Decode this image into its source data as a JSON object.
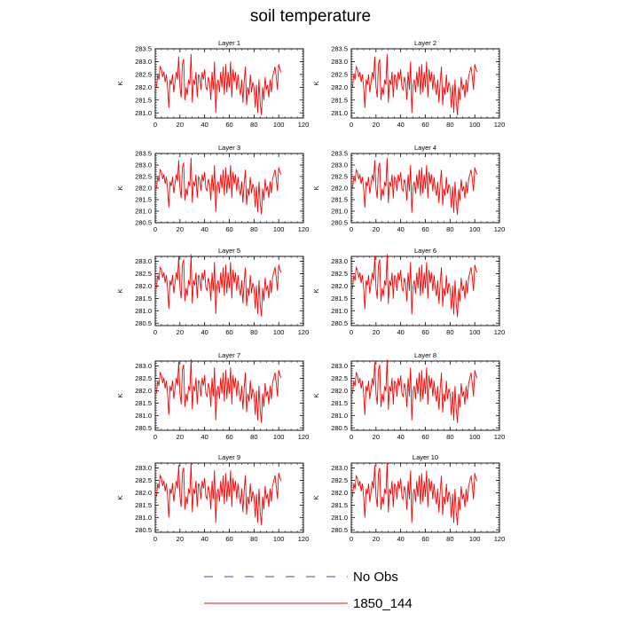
{
  "title": "soil temperature",
  "ylabel": "K",
  "legend": [
    {
      "label": "No Obs",
      "color": "#4a4aa8",
      "style": "dashed"
    },
    {
      "label": "1850_144",
      "color": "#ff0000",
      "style": "solid"
    }
  ],
  "chart_data": {
    "type": "line",
    "title": "soil temperature",
    "x_range": [
      0,
      120
    ],
    "x_ticks": [
      0,
      20,
      40,
      60,
      80,
      100,
      120
    ],
    "panels": [
      {
        "name": "Layer 1",
        "ylim": [
          280.8,
          283.5
        ],
        "yticks": [
          281.0,
          281.5,
          282.0,
          282.5,
          283.0,
          283.5
        ],
        "offset": 0.0,
        "scale": 1.0
      },
      {
        "name": "Layer 2",
        "ylim": [
          280.8,
          283.5
        ],
        "yticks": [
          281.0,
          281.5,
          282.0,
          282.5,
          283.0,
          283.5
        ],
        "offset": 0.0,
        "scale": 1.0
      },
      {
        "name": "Layer 3",
        "ylim": [
          280.5,
          283.5
        ],
        "yticks": [
          280.5,
          281.0,
          281.5,
          282.0,
          282.5,
          283.0,
          283.5
        ],
        "offset": -0.02,
        "scale": 1.02
      },
      {
        "name": "Layer 4",
        "ylim": [
          280.5,
          283.5
        ],
        "yticks": [
          280.5,
          281.0,
          281.5,
          282.0,
          282.5,
          283.0,
          283.5
        ],
        "offset": -0.03,
        "scale": 1.03
      },
      {
        "name": "Layer 5",
        "ylim": [
          280.4,
          283.2
        ],
        "yticks": [
          280.5,
          281.0,
          281.5,
          282.0,
          282.5,
          283.0
        ],
        "offset": -0.08,
        "scale": 1.05
      },
      {
        "name": "Layer 6",
        "ylim": [
          280.4,
          283.2
        ],
        "yticks": [
          280.5,
          281.0,
          281.5,
          282.0,
          282.5,
          283.0
        ],
        "offset": -0.09,
        "scale": 1.06
      },
      {
        "name": "Layer 7",
        "ylim": [
          280.4,
          283.2
        ],
        "yticks": [
          280.5,
          281.0,
          281.5,
          282.0,
          282.5,
          283.0
        ],
        "offset": -0.12,
        "scale": 1.07
      },
      {
        "name": "Layer 8",
        "ylim": [
          280.4,
          283.2
        ],
        "yticks": [
          280.5,
          281.0,
          281.5,
          282.0,
          282.5,
          283.0
        ],
        "offset": -0.13,
        "scale": 1.07
      },
      {
        "name": "Layer 9",
        "ylim": [
          280.4,
          283.2
        ],
        "yticks": [
          280.5,
          281.0,
          281.5,
          282.0,
          282.5,
          283.0
        ],
        "offset": -0.15,
        "scale": 1.06
      },
      {
        "name": "Layer 10",
        "ylim": [
          280.4,
          283.2
        ],
        "yticks": [
          280.5,
          281.0,
          281.5,
          282.0,
          282.5,
          283.0
        ],
        "offset": -0.16,
        "scale": 1.06
      }
    ],
    "series": [
      {
        "name": "1850_144",
        "x_start": 1,
        "x_step": 1,
        "values": [
          282.0,
          282.5,
          282.3,
          282.8,
          282.7,
          282.4,
          282.6,
          282.2,
          282.5,
          282.0,
          281.2,
          282.3,
          282.1,
          282.5,
          281.8,
          282.2,
          282.6,
          282.3,
          283.2,
          282.0,
          281.6,
          282.9,
          283.1,
          281.5,
          282.0,
          281.7,
          282.3,
          282.1,
          283.3,
          281.4,
          282.3,
          282.1,
          282.6,
          281.6,
          282.5,
          282.4,
          281.9,
          282.6,
          282.3,
          282.7,
          282.0,
          281.9,
          282.4,
          282.2,
          281.5,
          282.6,
          281.9,
          283.0,
          281.0,
          282.1,
          282.3,
          281.8,
          282.6,
          282.0,
          282.8,
          281.7,
          282.9,
          281.8,
          282.6,
          282.0,
          283.0,
          281.6,
          282.7,
          282.2,
          282.6,
          281.9,
          282.5,
          282.0,
          281.7,
          282.3,
          281.4,
          282.2,
          282.8,
          281.3,
          282.0,
          281.7,
          282.5,
          281.8,
          282.2,
          282.0,
          281.2,
          282.1,
          281.0,
          282.3,
          281.4,
          280.9,
          282.0,
          281.5,
          282.4,
          281.9,
          282.1,
          281.6,
          282.3,
          281.8,
          282.4,
          282.6,
          282.8,
          282.4,
          281.9,
          282.9,
          282.7,
          282.6
        ]
      }
    ],
    "no_obs": true
  }
}
